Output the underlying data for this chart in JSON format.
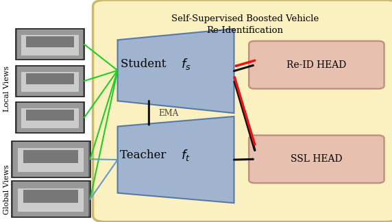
{
  "bg_color": "#FAF0C0",
  "bg_outline_color": "#C8B870",
  "student_color": "#A0B4D0",
  "teacher_color": "#A0B4D0",
  "head_color": "#E8C0B0",
  "head_edge_color": "#C09080",
  "poly_edge_color": "#5577AA",
  "green_arrow_color": "#22CC22",
  "blue_arrow_color": "#6699CC",
  "black_arrow_color": "#111111",
  "red_arrow_color": "#EE1111",
  "title": "Self-Supervised Boosted Vehicle\nRe-Identification",
  "student_label": "Student ",
  "teacher_label": "Teacher ",
  "reid_label": "Re-ID HEAD",
  "ssl_label": "SSL HEAD",
  "ema_label": "EMA",
  "local_views_label": "Local Views",
  "global_views_label": "Global Views",
  "figw": 5.72,
  "figh": 3.24,
  "dpi": 100
}
